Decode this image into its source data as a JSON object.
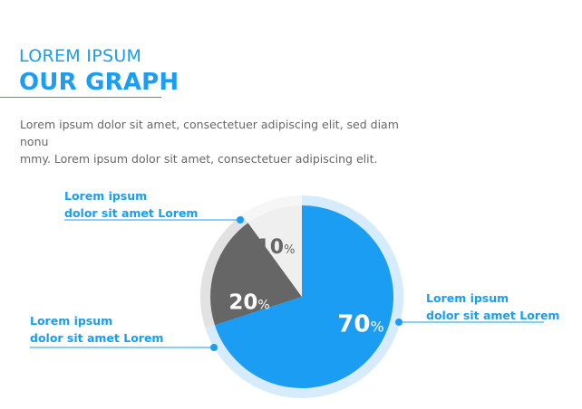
{
  "header": {
    "subtitle": "LOREM IPSUM",
    "title": "OUR GRAPH"
  },
  "description": {
    "line1": "Lorem ipsum dolor sit amet, consectetuer adipiscing elit, sed diam nonu",
    "line2": "mmy. Lorem ipsum dolor sit amet, consectetuer adipiscing elit."
  },
  "chart_data": {
    "type": "pie",
    "slices": [
      {
        "label": "70",
        "value": 70,
        "color": "#1a9df2",
        "outer_color": "#d6ebfb",
        "text_color": "#ffffff"
      },
      {
        "label": "20",
        "value": 20,
        "color": "#666666",
        "outer_color": "#e2e2e2",
        "text_color": "#ffffff"
      },
      {
        "label": "10",
        "value": 10,
        "color": "#efefef",
        "outer_color": "#f6f6f6",
        "text_color": "#666666"
      }
    ],
    "percent_symbol": "%",
    "start": "top, clockwise"
  },
  "callouts": {
    "top_left": {
      "line1": "Lorem ipsum",
      "line2": "dolor sit amet Lorem"
    },
    "bottom_left": {
      "line1": "Lorem ipsum",
      "line2": "dolor sit amet Lorem"
    },
    "right": {
      "line1": "Lorem ipsum",
      "line2": "dolor sit amet Lorem"
    }
  },
  "colors": {
    "accent": "#1a9df2",
    "line": "#1a9df2",
    "text": "#666666"
  }
}
